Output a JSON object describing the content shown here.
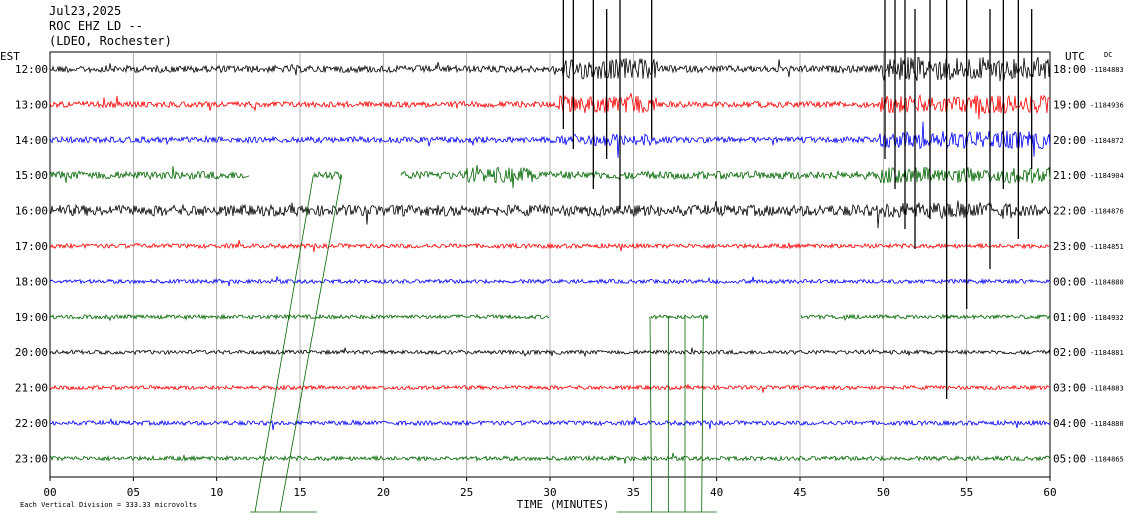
{
  "chart_data": {
    "type": "line",
    "title_lines": [
      "Jul23,2025",
      "ROC EHZ LD --",
      "(LDEO, Rochester)"
    ],
    "left_axis_label": "EST",
    "right_axis_label": "UTC",
    "dc_label": "DC",
    "xlabel": "TIME (MINUTES)",
    "x_ticks": [
      "00",
      "05",
      "10",
      "15",
      "20",
      "25",
      "30",
      "35",
      "40",
      "45",
      "50",
      "55",
      "60"
    ],
    "xlim": [
      0,
      60
    ],
    "footer": "Each Vertical Division =  333.33 microvolts",
    "colors": [
      "#000000",
      "#ff0000",
      "#0000ff",
      "#006600"
    ],
    "rows": [
      {
        "est": "12:00",
        "utc": "18:00",
        "dc": "-1184883"
      },
      {
        "est": "13:00",
        "utc": "19:00",
        "dc": "-1184936"
      },
      {
        "est": "14:00",
        "utc": "20:00",
        "dc": "-1184872"
      },
      {
        "est": "15:00",
        "utc": "21:00",
        "dc": "-1184904"
      },
      {
        "est": "16:00",
        "utc": "22:00",
        "dc": "-1184876"
      },
      {
        "est": "17:00",
        "utc": "23:00",
        "dc": "-1184851"
      },
      {
        "est": "18:00",
        "utc": "00:00",
        "dc": "-1184880"
      },
      {
        "est": "19:00",
        "utc": "01:00",
        "dc": "-1184932"
      },
      {
        "est": "20:00",
        "utc": "02:00",
        "dc": "-1184881"
      },
      {
        "est": "21:00",
        "utc": "03:00",
        "dc": "-1184883"
      },
      {
        "est": "22:00",
        "utc": "04:00",
        "dc": "-1184880"
      },
      {
        "est": "23:00",
        "utc": "05:00",
        "dc": "-1184865"
      }
    ]
  }
}
